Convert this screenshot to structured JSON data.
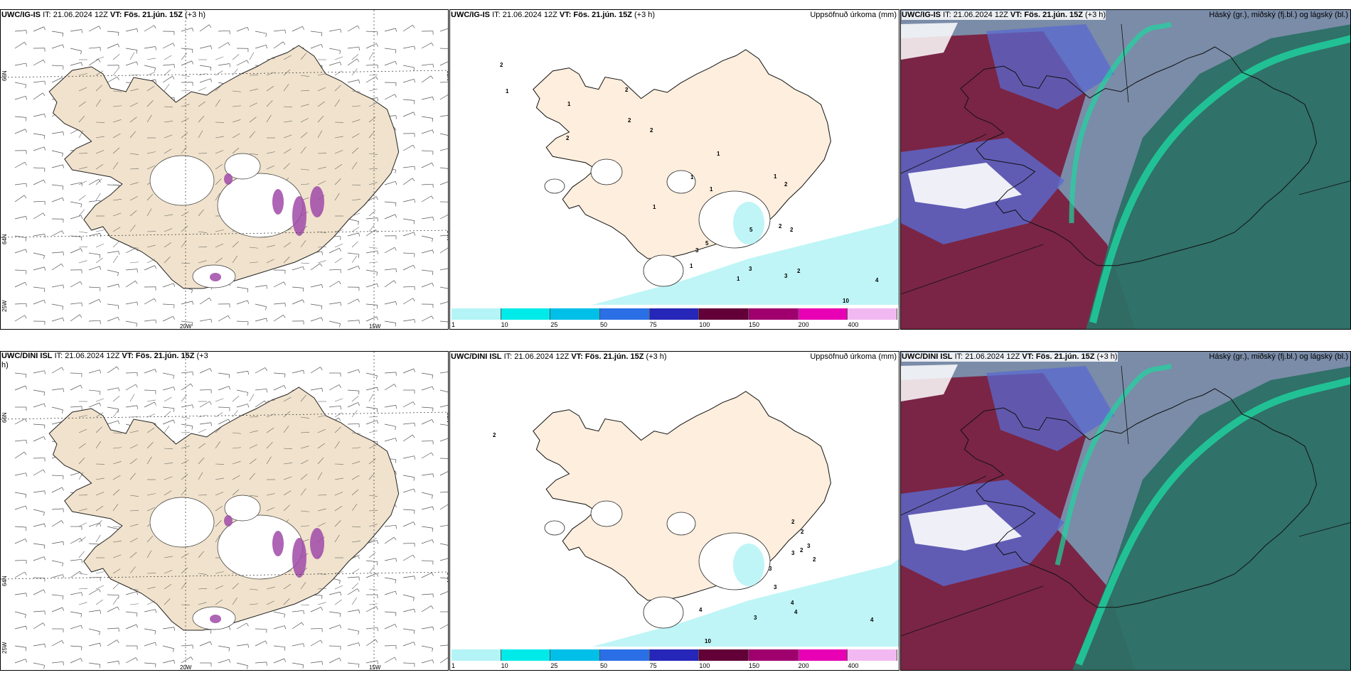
{
  "rows": [
    {
      "model": "UWC/IG-IS",
      "panel_wind": {
        "label": "UWC/IG-IS",
        "it": "IT: 21.06.2024 12Z",
        "vt_prefix": "VT:",
        "vt": "Fös. 21.jún. 15Z",
        "lead": "(+3 h)"
      },
      "panel_precip": {
        "label": "UWC/IG-IS",
        "it": "IT: 21.06.2024 12Z",
        "vt_prefix": "VT:",
        "vt": "Fös. 21.jún. 15Z",
        "lead": "(+3 h)",
        "right_title": "Uppsöfnuð úrkoma (mm)",
        "values": [
          "2",
          "1",
          "1",
          "2",
          "2",
          "2",
          "2",
          "1",
          "1",
          "1",
          "1",
          "1",
          "2",
          "2",
          "2",
          "5",
          "5",
          "3",
          "3",
          "1",
          "2",
          "3",
          "4",
          "10",
          "1"
        ]
      },
      "panel_cloud": {
        "label": "UWC/IG-IS",
        "it": "IT: 21.06.2024 12Z",
        "vt_prefix": "VT:",
        "vt": "Fös. 21.jún. 15Z",
        "lead": "(+3 h)",
        "right_title": "Háský (gr.), miðský (fj.bl.) og lágský (bl.)"
      }
    },
    {
      "model": "UWC/DINI ISL",
      "panel_wind": {
        "label": "UWC/DINI ISL",
        "it": "IT: 21.06.2024 12Z",
        "vt_prefix": "VT:",
        "vt": "Fös. 21.jún. 15Z",
        "lead": "(+3",
        "lead2": "h)"
      },
      "panel_precip": {
        "label": "UWC/DINI ISL",
        "it": "IT: 21.06.2024 12Z",
        "vt_prefix": "VT:",
        "vt": "Fös. 21.jún. 15Z",
        "lead": "(+3 h)",
        "right_title": "Uppsöfnuð úrkoma (mm)",
        "values": [
          "2",
          "2",
          "2",
          "3",
          "2",
          "3",
          "2",
          "3",
          "3",
          "4",
          "4",
          "4",
          "3",
          "4",
          "10"
        ]
      },
      "panel_cloud": {
        "label": "UWC/DINI ISL",
        "it": "IT: 21.06.2024 12Z",
        "vt_prefix": "VT:",
        "vt": "Fös. 21.jún. 15Z",
        "lead": "(+3 h)",
        "right_title": "Háský (gr.), miðský (fj.bl.) og lágský (bl.)"
      }
    }
  ],
  "axis_labels": {
    "lat_66": "66N",
    "lat_64": "64N",
    "lat_64b": "64N",
    "lat_65": "65N",
    "lon_25": "25W",
    "lon_20": "20W",
    "lon_15": "15W"
  },
  "colorbar": {
    "ticks": [
      "1",
      "10",
      "25",
      "50",
      "75",
      "100",
      "150",
      "200",
      "400"
    ],
    "colors": [
      "#b4f4f6",
      "#00eaea",
      "#00bfe8",
      "#2a6fe6",
      "#2626b8",
      "#620037",
      "#a0006e",
      "#e800b4",
      "#f2b8f2"
    ]
  },
  "colors": {
    "land": "#f0e2cc",
    "land_precip": "#fdeedd",
    "precip_light": "#bff5f7",
    "cloud_high": "#2c7065",
    "cloud_mid": "#5a6ad0",
    "cloud_low": "#7a1a3a",
    "cloud_green": "#1ed6a0"
  }
}
